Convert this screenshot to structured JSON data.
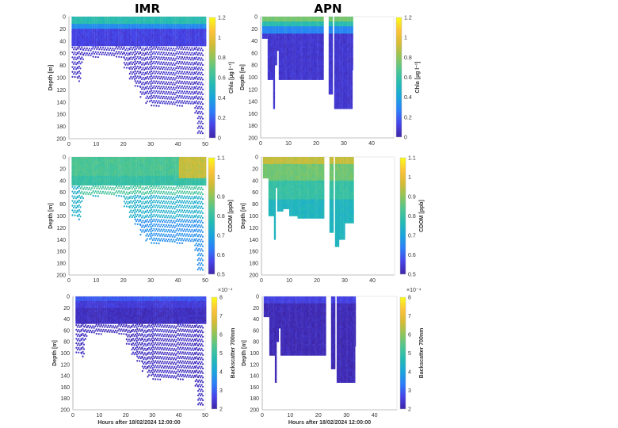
{
  "titles": {
    "left": "IMR",
    "right": "APN"
  },
  "colors": {
    "parula": [
      "#3e26a8",
      "#4744e8",
      "#2c7ef8",
      "#1aa4dd",
      "#24bab4",
      "#4cc593",
      "#8ec55a",
      "#d5bb35",
      "#fcc338",
      "#f9fb15"
    ]
  },
  "chart_data": [
    {
      "id": "imr-chla",
      "type": "scatter",
      "title": "IMR",
      "ylabel": "Depth [m]",
      "xlabel": "",
      "colorbar_label": "Chla [µg l⁻¹]",
      "xlim": [
        0,
        50
      ],
      "ylim": [
        0,
        200
      ],
      "y_reversed": true,
      "clim": [
        0,
        1.2
      ],
      "xticks": [
        "0",
        "10",
        "20",
        "30",
        "40",
        "50"
      ],
      "yticks": [
        "0",
        "20",
        "40",
        "60",
        "80",
        "100",
        "120",
        "140",
        "160",
        "180",
        "200"
      ],
      "cticks": [
        "0",
        "0.2",
        "0.4",
        "0.6",
        "0.8",
        "1",
        "1.2"
      ],
      "cbar_exponent": "",
      "style": "dotted",
      "dense_to_depth": 45,
      "profiles": [
        [
          1,
          3,
          100
        ],
        [
          3,
          4,
          105
        ],
        [
          4,
          5,
          75
        ],
        [
          5,
          20,
          65
        ],
        [
          20,
          22,
          85
        ],
        [
          22,
          24,
          105
        ],
        [
          24,
          26,
          115
        ],
        [
          26,
          28,
          130
        ],
        [
          28,
          30,
          140
        ],
        [
          30,
          46,
          145
        ],
        [
          46,
          47,
          160
        ],
        [
          47,
          49,
          190
        ],
        [
          49,
          50,
          45
        ]
      ],
      "layers": [
        [
          0,
          0,
          50,
          0,
          10,
          0.55
        ],
        [
          0,
          0,
          50,
          10,
          20,
          0.32
        ],
        [
          0,
          0,
          50,
          20,
          45,
          0.12
        ],
        [
          0,
          0,
          50,
          45,
          200,
          0.06
        ]
      ]
    },
    {
      "id": "apn-chla",
      "type": "scatter",
      "title": "APN",
      "ylabel": "Depth [m]",
      "xlabel": "",
      "colorbar_label": "Chla [µg l⁻¹]",
      "xlim": [
        0,
        48
      ],
      "ylim": [
        0,
        200
      ],
      "y_reversed": true,
      "clim": [
        0,
        1.2
      ],
      "xticks": [
        "0",
        "10",
        "20",
        "30",
        "40"
      ],
      "yticks": [
        "0",
        "20",
        "40",
        "60",
        "80",
        "100",
        "120",
        "140",
        "160",
        "180",
        "200"
      ],
      "cticks": [
        "0",
        "0.2",
        "0.4",
        "0.6",
        "0.8",
        "1",
        "1.2"
      ],
      "cbar_exponent": "",
      "style": "continuous",
      "profiles": [
        [
          0.5,
          2.5,
          33
        ],
        [
          2.5,
          4.5,
          101
        ],
        [
          4.5,
          5,
          150
        ],
        [
          5,
          5.7,
          80
        ],
        [
          5.7,
          6.5,
          54
        ],
        [
          6.5,
          22.5,
          102
        ],
        [
          24.5,
          26,
          127
        ],
        [
          26.5,
          33,
          151
        ],
        [
          33,
          33.3,
          86
        ]
      ],
      "layers": [
        [
          0,
          0,
          48,
          0,
          8,
          0.75
        ],
        [
          0,
          0,
          48,
          8,
          15,
          0.55
        ],
        [
          0,
          0,
          48,
          15,
          25,
          0.3
        ],
        [
          0,
          0,
          48,
          25,
          200,
          0.08
        ]
      ]
    },
    {
      "id": "imr-cdom",
      "type": "scatter",
      "title": "",
      "ylabel": "Depth [m]",
      "xlabel": "",
      "colorbar_label": "CDOM [ppb]",
      "xlim": [
        0,
        50
      ],
      "ylim": [
        0,
        200
      ],
      "y_reversed": true,
      "clim": [
        0.5,
        1.1
      ],
      "xticks": [
        "0",
        "10",
        "20",
        "30",
        "40",
        "50"
      ],
      "yticks": [
        "0",
        "20",
        "40",
        "60",
        "80",
        "100",
        "120",
        "140",
        "160",
        "180",
        "200"
      ],
      "cticks": [
        "0.5",
        "0.6",
        "0.7",
        "0.8",
        "0.9",
        "1",
        "1.1"
      ],
      "cbar_exponent": "",
      "style": "dotted",
      "dense_to_depth": 45,
      "profiles": [
        [
          1,
          3,
          100
        ],
        [
          3,
          4,
          105
        ],
        [
          4,
          5,
          75
        ],
        [
          5,
          20,
          65
        ],
        [
          20,
          22,
          85
        ],
        [
          22,
          24,
          105
        ],
        [
          24,
          26,
          115
        ],
        [
          26,
          28,
          130
        ],
        [
          28,
          30,
          140
        ],
        [
          30,
          46,
          145
        ],
        [
          46,
          47,
          160
        ],
        [
          47,
          49,
          190
        ],
        [
          49,
          50,
          45
        ]
      ],
      "layers": [
        [
          0,
          0,
          50,
          0,
          30,
          0.83
        ],
        [
          0,
          0,
          50,
          30,
          45,
          0.8
        ],
        [
          0,
          0,
          50,
          45,
          100,
          0.73
        ],
        [
          0,
          0,
          50,
          100,
          200,
          0.66
        ],
        [
          0,
          40,
          50,
          0,
          35,
          0.95
        ],
        [
          0,
          4,
          50,
          45,
          60,
          0.82
        ]
      ]
    },
    {
      "id": "apn-cdom",
      "type": "scatter",
      "title": "",
      "ylabel": "Depth [m]",
      "xlabel": "",
      "colorbar_label": "CDOM [ppb]",
      "xlim": [
        0,
        48
      ],
      "ylim": [
        0,
        200
      ],
      "y_reversed": true,
      "clim": [
        0.5,
        1.1
      ],
      "xticks": [
        "0",
        "10",
        "20",
        "30",
        "40"
      ],
      "yticks": [
        "0",
        "20",
        "40",
        "60",
        "80",
        "100",
        "120",
        "140",
        "160",
        "180",
        "200"
      ],
      "cticks": [
        "0.5",
        "0.6",
        "0.7",
        "0.8",
        "0.9",
        "1",
        "1.1"
      ],
      "cbar_exponent": "",
      "style": "continuous",
      "profiles": [
        [
          0.5,
          2.5,
          33
        ],
        [
          2.5,
          4.5,
          100
        ],
        [
          4.5,
          5,
          138
        ],
        [
          5,
          5.7,
          50
        ],
        [
          5.7,
          7.5,
          92
        ],
        [
          7.5,
          10,
          85
        ],
        [
          10,
          13,
          100
        ],
        [
          13,
          22.5,
          102
        ],
        [
          24.5,
          26,
          127
        ],
        [
          26.5,
          28,
          150
        ],
        [
          28,
          30,
          140
        ],
        [
          30,
          33,
          110
        ]
      ],
      "layers": [
        [
          0,
          0,
          48,
          0,
          12,
          0.95
        ],
        [
          0,
          0,
          48,
          12,
          40,
          0.87
        ],
        [
          0,
          0,
          48,
          40,
          70,
          0.8
        ],
        [
          0,
          0,
          48,
          70,
          200,
          0.75
        ]
      ]
    },
    {
      "id": "imr-bbp",
      "type": "scatter",
      "title": "",
      "ylabel": "Depth [m]",
      "xlabel": "Hours after 18/02/2024 12:00:00",
      "colorbar_label": "Backscatter 700nm",
      "xlim": [
        0,
        50
      ],
      "ylim": [
        0,
        200
      ],
      "y_reversed": true,
      "clim": [
        2,
        8
      ],
      "xticks": [
        "0",
        "10",
        "20",
        "30",
        "40",
        "50"
      ],
      "yticks": [
        "0",
        "20",
        "40",
        "60",
        "80",
        "100",
        "120",
        "140",
        "160",
        "180",
        "200"
      ],
      "cticks": [
        "2",
        "3",
        "4",
        "5",
        "6",
        "7",
        "8"
      ],
      "cbar_exponent": "×10⁻⁴",
      "style": "dotted",
      "dense_to_depth": 45,
      "profiles": [
        [
          1,
          3,
          100
        ],
        [
          3,
          4,
          105
        ],
        [
          4,
          5,
          75
        ],
        [
          5,
          20,
          65
        ],
        [
          20,
          22,
          85
        ],
        [
          22,
          24,
          105
        ],
        [
          24,
          26,
          115
        ],
        [
          26,
          28,
          130
        ],
        [
          28,
          30,
          140
        ],
        [
          30,
          46,
          145
        ],
        [
          46,
          47,
          160
        ],
        [
          47,
          49,
          190
        ],
        [
          49,
          50,
          45
        ]
      ],
      "layers": [
        [
          0,
          0,
          50,
          0,
          8,
          2.9
        ],
        [
          0,
          0,
          50,
          8,
          20,
          2.5
        ],
        [
          0,
          0,
          50,
          20,
          200,
          2.25
        ]
      ]
    },
    {
      "id": "apn-bbp",
      "type": "scatter",
      "title": "",
      "ylabel": "Depth [m]",
      "xlabel": "Hours after 18/02/2024 12:00:00",
      "colorbar_label": "Backscatter 700nm",
      "xlim": [
        0,
        48
      ],
      "ylim": [
        0,
        200
      ],
      "y_reversed": true,
      "clim": [
        2,
        8
      ],
      "xticks": [
        "0",
        "10",
        "20",
        "30",
        "40"
      ],
      "yticks": [
        "0",
        "20",
        "40",
        "60",
        "80",
        "100",
        "120",
        "140",
        "160",
        "180",
        "200"
      ],
      "cticks": [
        "2",
        "3",
        "4",
        "5",
        "6",
        "7",
        "8"
      ],
      "cbar_exponent": "×10⁻⁴",
      "style": "continuous",
      "profiles": [
        [
          0.5,
          2.5,
          33
        ],
        [
          2.5,
          4.5,
          101
        ],
        [
          4.5,
          5,
          150
        ],
        [
          5,
          5.7,
          80
        ],
        [
          5.7,
          6.5,
          54
        ],
        [
          6.5,
          22.5,
          102
        ],
        [
          24.5,
          26,
          127
        ],
        [
          26.5,
          33,
          151
        ],
        [
          33,
          33.3,
          86
        ]
      ],
      "layers": [
        [
          0,
          0,
          48,
          0,
          10,
          2.6
        ],
        [
          0,
          0,
          48,
          10,
          200,
          2.15
        ]
      ]
    }
  ]
}
